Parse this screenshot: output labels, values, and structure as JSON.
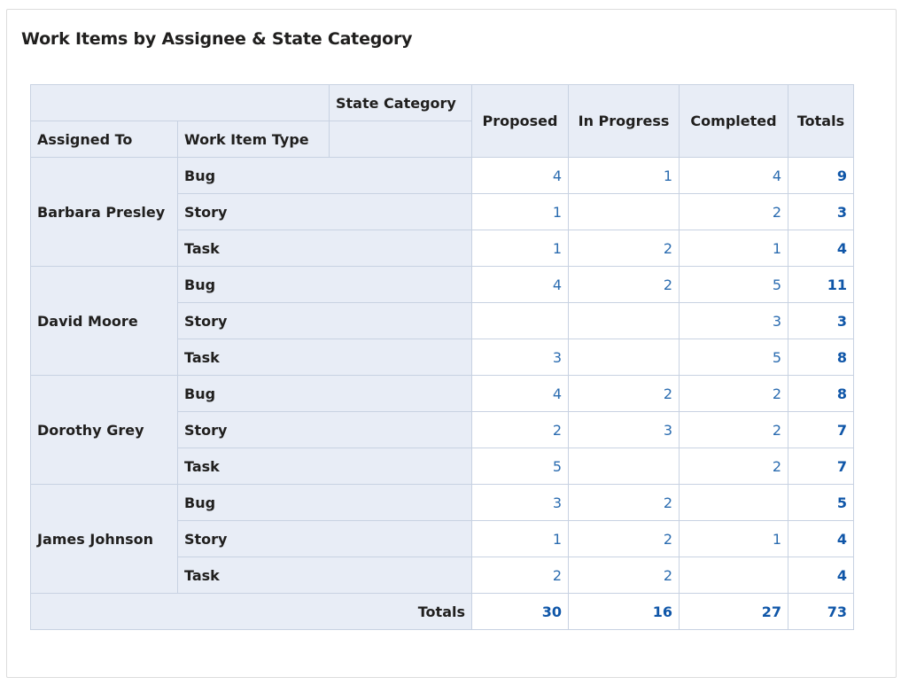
{
  "title": "Work Items by Assignee & State Category",
  "headers": {
    "state_category": "State Category",
    "assigned_to": "Assigned To",
    "work_item_type": "Work Item Type",
    "columns": [
      "Proposed",
      "In Progress",
      "Completed",
      "Totals"
    ]
  },
  "rows": [
    {
      "assignee": "Barbara Presley",
      "type": "Bug",
      "values": [
        "4",
        "1",
        "4",
        "9"
      ]
    },
    {
      "assignee": "Barbara Presley",
      "type": "Story",
      "values": [
        "1",
        "",
        "2",
        "3"
      ]
    },
    {
      "assignee": "Barbara Presley",
      "type": "Task",
      "values": [
        "1",
        "2",
        "1",
        "4"
      ]
    },
    {
      "assignee": "David Moore",
      "type": "Bug",
      "values": [
        "4",
        "2",
        "5",
        "11"
      ]
    },
    {
      "assignee": "David Moore",
      "type": "Story",
      "values": [
        "",
        "",
        "3",
        "3"
      ]
    },
    {
      "assignee": "David Moore",
      "type": "Task",
      "values": [
        "3",
        "",
        "5",
        "8"
      ]
    },
    {
      "assignee": "Dorothy Grey",
      "type": "Bug",
      "values": [
        "4",
        "2",
        "2",
        "8"
      ]
    },
    {
      "assignee": "Dorothy Grey",
      "type": "Story",
      "values": [
        "2",
        "3",
        "2",
        "7"
      ]
    },
    {
      "assignee": "Dorothy Grey",
      "type": "Task",
      "values": [
        "5",
        "",
        "2",
        "7"
      ]
    },
    {
      "assignee": "James Johnson",
      "type": "Bug",
      "values": [
        "3",
        "2",
        "",
        "5"
      ]
    },
    {
      "assignee": "James Johnson",
      "type": "Story",
      "values": [
        "1",
        "2",
        "1",
        "4"
      ]
    },
    {
      "assignee": "James Johnson",
      "type": "Task",
      "values": [
        "2",
        "2",
        "",
        "4"
      ]
    }
  ],
  "totals": {
    "label": "Totals",
    "values": [
      "30",
      "16",
      "27",
      "73"
    ]
  }
}
